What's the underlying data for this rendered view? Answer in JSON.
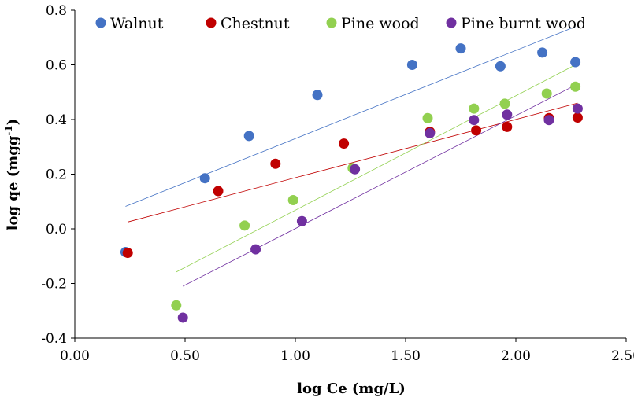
{
  "chart_data": {
    "type": "scatter",
    "title": "",
    "xlabel": "log Ce (mg/L)",
    "ylabel": "log qe (mgg",
    "ylabel_sup": "-1",
    "ylabel_close": ")",
    "xlim": [
      0,
      2.5
    ],
    "ylim": [
      -0.4,
      0.8
    ],
    "x_ticks": [
      "0.00",
      "0.50",
      "1.00",
      "1.50",
      "2.00",
      "2.50"
    ],
    "y_ticks": [
      "-0.4",
      "-0.2",
      "0.0",
      "0.2",
      "0.4",
      "0.6",
      "0.8"
    ],
    "grid": false,
    "legend_position": "top",
    "series": [
      {
        "name": "Walnut",
        "color": "#4472C4",
        "x": [
          0.23,
          0.59,
          0.79,
          1.1,
          1.53,
          1.75,
          1.93,
          2.12,
          2.27
        ],
        "y": [
          -0.085,
          0.185,
          0.34,
          0.49,
          0.6,
          0.66,
          0.595,
          0.645,
          0.61
        ],
        "trend": {
          "x": [
            0.23,
            2.27
          ],
          "y": [
            0.082,
            0.74
          ]
        }
      },
      {
        "name": "Chestnut",
        "color": "#C00000",
        "x": [
          0.24,
          0.65,
          0.91,
          1.22,
          1.61,
          1.82,
          1.96,
          2.15,
          2.28
        ],
        "y": [
          -0.088,
          0.138,
          0.238,
          0.312,
          0.355,
          0.36,
          0.373,
          0.405,
          0.407
        ],
        "trend": {
          "x": [
            0.24,
            2.28
          ],
          "y": [
            0.025,
            0.46
          ]
        }
      },
      {
        "name": "Pine wood",
        "color": "#92D050",
        "x": [
          0.46,
          0.77,
          0.99,
          1.26,
          1.6,
          1.81,
          1.95,
          2.14,
          2.27
        ],
        "y": [
          -0.28,
          0.012,
          0.105,
          0.222,
          0.405,
          0.44,
          0.458,
          0.495,
          0.52
        ],
        "trend": {
          "x": [
            0.46,
            2.27
          ],
          "y": [
            -0.158,
            0.6
          ]
        }
      },
      {
        "name": "Pine burnt wood",
        "color": "#7030A0",
        "x": [
          0.49,
          0.82,
          1.03,
          1.27,
          1.61,
          1.81,
          1.96,
          2.15,
          2.28
        ],
        "y": [
          -0.325,
          -0.075,
          0.028,
          0.218,
          0.35,
          0.398,
          0.418,
          0.398,
          0.44
        ],
        "trend": {
          "x": [
            0.49,
            2.28
          ],
          "y": [
            -0.21,
            0.53
          ]
        }
      }
    ]
  }
}
